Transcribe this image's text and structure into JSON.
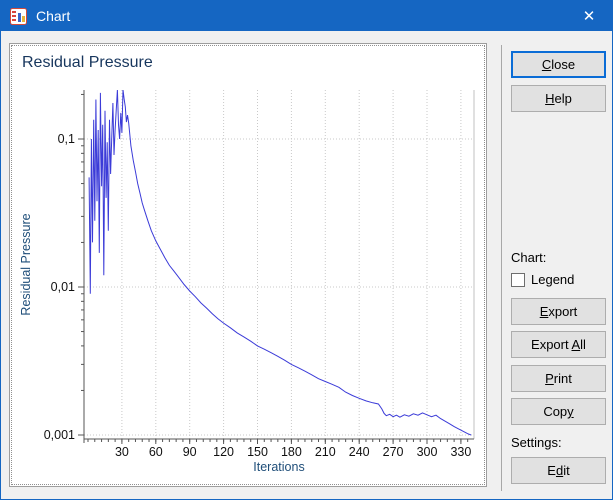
{
  "window": {
    "title": "Chart",
    "close_glyph": "✕"
  },
  "colors": {
    "accent": "#1566c2",
    "curve": "#3b3bd8",
    "chart_title": "#17365d",
    "axis_title": "#1f4e79",
    "tick_label": "#111111",
    "grid": "#c9c9c9",
    "axis_line": "#555555",
    "plot_right_border": "#c0c0c0"
  },
  "sidebar": {
    "close": {
      "pre": "",
      "u": "C",
      "post": "lose"
    },
    "help": {
      "pre": "",
      "u": "H",
      "post": "elp"
    },
    "chart_label": "Chart:",
    "legend_label": "Legend",
    "legend_checked": false,
    "export": {
      "pre": "",
      "u": "E",
      "post": "xport"
    },
    "export_all": {
      "pre": "Export ",
      "u": "A",
      "post": "ll"
    },
    "print": {
      "pre": "",
      "u": "P",
      "post": "rint"
    },
    "copy": {
      "pre": "Cop",
      "u": "y",
      "post": ""
    },
    "settings_label": "Settings:",
    "edit": {
      "pre": "E",
      "u": "d",
      "post": "it"
    }
  },
  "chart_data": {
    "type": "line",
    "title": "Residual Pressure",
    "xlabel": "Iterations",
    "ylabel": "Residual Pressure",
    "y_scale": "log",
    "ylim": [
      0.001,
      0.214
    ],
    "xlim": [
      0,
      341
    ],
    "x_ticks": [
      30,
      60,
      90,
      120,
      150,
      180,
      210,
      240,
      270,
      300,
      330
    ],
    "x_minor_step": 6,
    "y_ticks": [
      {
        "value": 0.1,
        "label": "0,1"
      },
      {
        "value": 0.01,
        "label": "0,01"
      },
      {
        "value": 0.001,
        "label": "0,001"
      }
    ],
    "grid": "dotted",
    "legend_visible": false,
    "points": [
      [
        1,
        0.055
      ],
      [
        2,
        0.009
      ],
      [
        3,
        0.1
      ],
      [
        4,
        0.02
      ],
      [
        5,
        0.135
      ],
      [
        6,
        0.028
      ],
      [
        7,
        0.185
      ],
      [
        8,
        0.038
      ],
      [
        9,
        0.115
      ],
      [
        10,
        0.017
      ],
      [
        11,
        0.205
      ],
      [
        12,
        0.048
      ],
      [
        13,
        0.125
      ],
      [
        14,
        0.012
      ],
      [
        15,
        0.155
      ],
      [
        16,
        0.04
      ],
      [
        17,
        0.095
      ],
      [
        18,
        0.024
      ],
      [
        19,
        0.135
      ],
      [
        20,
        0.058
      ],
      [
        21,
        0.1
      ],
      [
        22,
        0.175
      ],
      [
        23,
        0.078
      ],
      [
        24,
        0.115
      ],
      [
        25,
        0.16
      ],
      [
        26,
        0.215
      ],
      [
        27,
        0.125
      ],
      [
        28,
        0.1
      ],
      [
        29,
        0.15
      ],
      [
        30,
        0.11
      ],
      [
        31,
        0.215
      ],
      [
        32,
        0.185
      ],
      [
        33,
        0.165
      ],
      [
        34,
        0.13
      ],
      [
        35,
        0.145
      ],
      [
        36,
        0.128
      ],
      [
        38,
        0.09
      ],
      [
        40,
        0.072
      ],
      [
        42,
        0.06
      ],
      [
        44,
        0.05
      ],
      [
        46,
        0.043
      ],
      [
        48,
        0.037
      ],
      [
        50,
        0.033
      ],
      [
        53,
        0.028
      ],
      [
        56,
        0.024
      ],
      [
        60,
        0.0205
      ],
      [
        64,
        0.018
      ],
      [
        68,
        0.0158
      ],
      [
        72,
        0.014
      ],
      [
        76,
        0.0128
      ],
      [
        80,
        0.0117
      ],
      [
        85,
        0.0104
      ],
      [
        90,
        0.0094
      ],
      [
        95,
        0.0086
      ],
      [
        100,
        0.0078
      ],
      [
        105,
        0.0072
      ],
      [
        110,
        0.0066
      ],
      [
        115,
        0.0061
      ],
      [
        120,
        0.0057
      ],
      [
        126,
        0.0053
      ],
      [
        132,
        0.0049
      ],
      [
        138,
        0.0046
      ],
      [
        144,
        0.0043
      ],
      [
        150,
        0.004
      ],
      [
        156,
        0.0038
      ],
      [
        162,
        0.0036
      ],
      [
        168,
        0.0034
      ],
      [
        174,
        0.0032
      ],
      [
        180,
        0.003
      ],
      [
        186,
        0.00285
      ],
      [
        192,
        0.0027
      ],
      [
        198,
        0.00255
      ],
      [
        204,
        0.0024
      ],
      [
        210,
        0.0023
      ],
      [
        216,
        0.0022
      ],
      [
        222,
        0.0021
      ],
      [
        228,
        0.00195
      ],
      [
        234,
        0.00185
      ],
      [
        240,
        0.00177
      ],
      [
        246,
        0.0017
      ],
      [
        252,
        0.00165
      ],
      [
        257,
        0.00162
      ],
      [
        260,
        0.0015
      ],
      [
        262,
        0.0014
      ],
      [
        264,
        0.00135
      ],
      [
        267,
        0.00138
      ],
      [
        270,
        0.00133
      ],
      [
        273,
        0.00136
      ],
      [
        276,
        0.00132
      ],
      [
        280,
        0.00137
      ],
      [
        284,
        0.00134
      ],
      [
        288,
        0.00139
      ],
      [
        292,
        0.00136
      ],
      [
        296,
        0.00141
      ],
      [
        300,
        0.00137
      ],
      [
        304,
        0.00133
      ],
      [
        308,
        0.00136
      ],
      [
        312,
        0.00129
      ],
      [
        316,
        0.00124
      ],
      [
        320,
        0.00119
      ],
      [
        324,
        0.00114
      ],
      [
        328,
        0.0011
      ],
      [
        332,
        0.00106
      ],
      [
        336,
        0.00102
      ],
      [
        339,
        0.001
      ]
    ]
  }
}
